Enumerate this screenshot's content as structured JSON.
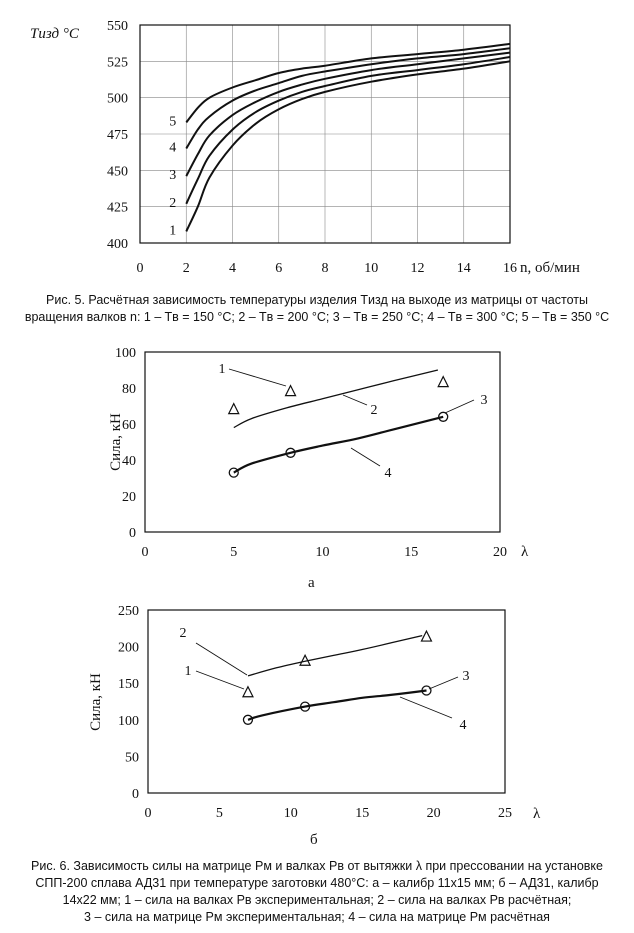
{
  "figure5": {
    "caption_line1": "Рис. 5. Расчётная зависимость температуры изделия Tизд на выходе из матрицы от частоты",
    "caption_line2": "вращения валков n: 1 – Tв = 150 °C; 2 – Tв = 200 °C; 3 – Tв = 250 °C; 4 – Tв = 300 °C; 5 – Tв = 350 °C"
  },
  "figure6": {
    "sublabel_a": "а",
    "sublabel_b": "б",
    "caption_line1": "Рис. 6. Зависимость силы на матрице Pм и валках Pв от вытяжки λ при прессовании на установке",
    "caption_line2": "СПП-200 сплава АД31 при температуре заготовки 480°C: а – калибр 11х15 мм; б – АД31, калибр",
    "caption_line3": "14х22 мм; 1 – сила на валках Pв экспериментальная; 2 – сила на валках Pв расчётная;",
    "caption_line4": "3 – сила на матрице Pм экспериментальная; 4 – сила на матрице Pм расчётная"
  },
  "chart_data": [
    {
      "type": "line",
      "ylabel": "Tизд °C",
      "xlabel": "n, об/мин",
      "xlim": [
        0,
        16
      ],
      "ylim": [
        400,
        550
      ],
      "x_ticks": [
        0,
        2,
        4,
        6,
        8,
        10,
        12,
        14,
        16
      ],
      "y_ticks": [
        400,
        425,
        450,
        475,
        500,
        525,
        550
      ],
      "grid": true,
      "x": [
        2,
        2.5,
        3,
        4,
        5,
        6,
        7,
        8,
        10,
        12,
        14,
        16
      ],
      "series": [
        {
          "name": "1",
          "values": [
            408,
            425,
            445,
            467,
            482,
            492,
            499,
            504,
            511,
            516,
            520,
            525
          ]
        },
        {
          "name": "2",
          "values": [
            427,
            444,
            460,
            478,
            490,
            498,
            504,
            508,
            515,
            519,
            523,
            528
          ]
        },
        {
          "name": "3",
          "values": [
            446,
            461,
            474,
            488,
            497,
            504,
            509,
            513,
            519,
            523,
            527,
            531
          ]
        },
        {
          "name": "4",
          "values": [
            465,
            478,
            487,
            498,
            505,
            510,
            515,
            518,
            523,
            527,
            530,
            534
          ]
        },
        {
          "name": "5",
          "values": [
            483,
            493,
            500,
            507,
            512,
            517,
            520,
            522,
            527,
            530,
            533,
            537
          ]
        }
      ]
    },
    {
      "type": "line",
      "ylabel": "Сила, кН",
      "xlabel": "λ",
      "xlim": [
        0,
        20
      ],
      "ylim": [
        0,
        100
      ],
      "x_ticks": [
        0,
        5,
        10,
        15,
        20
      ],
      "y_ticks": [
        0,
        20,
        40,
        60,
        80,
        100
      ],
      "grid": false,
      "series": [
        {
          "name": "1",
          "kind": "triangle",
          "x": [
            5,
            8.2,
            16.8
          ],
          "y": [
            68,
            78,
            83
          ]
        },
        {
          "name": "2",
          "kind": "calc-line",
          "x": [
            5,
            6,
            8,
            10,
            12,
            14,
            16.5
          ],
          "y": [
            58,
            63,
            69,
            74,
            79,
            84,
            90
          ]
        },
        {
          "name": "3",
          "kind": "circle",
          "x": [
            5,
            8.2,
            16.8
          ],
          "y": [
            33,
            44,
            64
          ]
        },
        {
          "name": "4",
          "kind": "exp-line",
          "x": [
            5,
            6,
            8.2,
            10,
            12,
            14,
            16.8
          ],
          "y": [
            33,
            38,
            44,
            48,
            52,
            57,
            64
          ]
        }
      ],
      "callouts": [
        "1",
        "2",
        "3",
        "4"
      ]
    },
    {
      "type": "line",
      "ylabel": "Сила, кН",
      "xlabel": "λ",
      "xlim": [
        0,
        25
      ],
      "ylim": [
        0,
        250
      ],
      "x_ticks": [
        0,
        5,
        10,
        15,
        20,
        25
      ],
      "y_ticks": [
        0,
        50,
        100,
        150,
        200,
        250
      ],
      "grid": false,
      "series": [
        {
          "name": "1",
          "kind": "triangle",
          "x": [
            7,
            11,
            19.5
          ],
          "y": [
            137,
            180,
            213
          ]
        },
        {
          "name": "2",
          "kind": "calc-line",
          "x": [
            7,
            9,
            11,
            13,
            15,
            17,
            19.2
          ],
          "y": [
            160,
            171,
            180,
            188,
            196,
            205,
            215
          ]
        },
        {
          "name": "3",
          "kind": "circle",
          "x": [
            7,
            11,
            19.5
          ],
          "y": [
            100,
            118,
            140
          ]
        },
        {
          "name": "4",
          "kind": "exp-line",
          "x": [
            7,
            8,
            11,
            13,
            15,
            17,
            19.5
          ],
          "y": [
            100,
            106,
            118,
            124,
            130,
            134,
            140
          ]
        }
      ],
      "callouts": [
        "1",
        "2",
        "3",
        "4"
      ]
    }
  ]
}
